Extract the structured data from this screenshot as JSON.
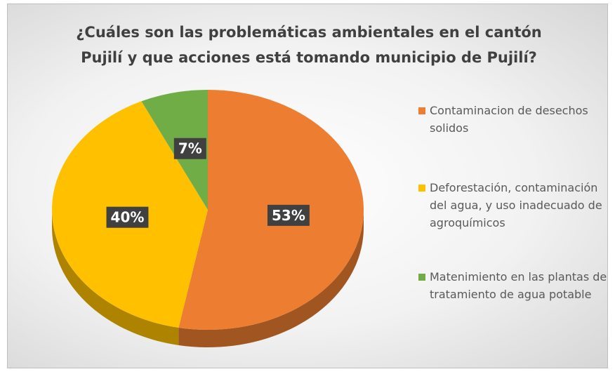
{
  "chart_data": {
    "type": "pie",
    "title": "¿Cuáles son las problemáticas ambientales en el cantón Pujilí y que acciones está tomando municipio de Pujilí?",
    "categories": [
      "Contaminacion de desechos solidos",
      "Deforestación, contaminación del agua, y uso inadecuado de agroquímicos",
      "Matenimiento en las plantas de tratamiento de agua potable"
    ],
    "values": [
      53,
      40,
      7
    ],
    "value_labels": [
      "53%",
      "40%",
      "7%"
    ],
    "colors": [
      "#ed7d31",
      "#ffc000",
      "#70ad47"
    ],
    "legend": "right"
  }
}
